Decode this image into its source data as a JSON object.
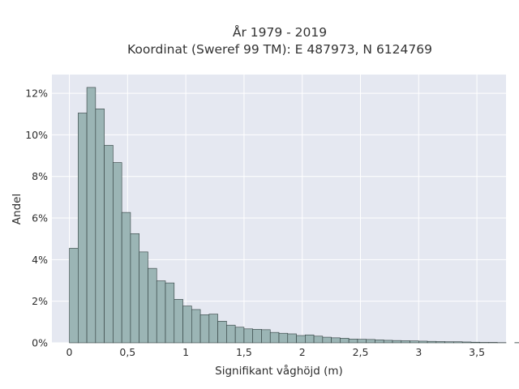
{
  "chart_data": {
    "type": "bar",
    "title_lines": [
      "År 1979 - 2019",
      "Koordinat (Sweref 99 TM): E 487973, N 6124769"
    ],
    "xlabel": "Signifikant våghöjd (m)",
    "ylabel": "Andel",
    "xlim": [
      -0.15,
      3.75
    ],
    "ylim": [
      0,
      12.9
    ],
    "x_ticks": [
      {
        "value": 0,
        "label": "0"
      },
      {
        "value": 0.5,
        "label": "0,5"
      },
      {
        "value": 1,
        "label": "1"
      },
      {
        "value": 1.5,
        "label": "1,5"
      },
      {
        "value": 2,
        "label": "2"
      },
      {
        "value": 2.5,
        "label": "2,5"
      },
      {
        "value": 3,
        "label": "3"
      },
      {
        "value": 3.5,
        "label": "3,5"
      }
    ],
    "y_ticks": [
      {
        "value": 0,
        "label": "0%"
      },
      {
        "value": 2,
        "label": "2%"
      },
      {
        "value": 4,
        "label": "4%"
      },
      {
        "value": 6,
        "label": "6%"
      },
      {
        "value": 8,
        "label": "8%"
      },
      {
        "value": 10,
        "label": "10%"
      },
      {
        "value": 12,
        "label": "12%"
      }
    ],
    "bin_width": 0.075,
    "bin_start": 0.0,
    "values": [
      4.55,
      11.05,
      12.28,
      11.25,
      9.5,
      8.67,
      6.27,
      5.25,
      4.37,
      3.58,
      2.98,
      2.88,
      2.09,
      1.77,
      1.6,
      1.35,
      1.38,
      1.04,
      0.85,
      0.75,
      0.67,
      0.65,
      0.63,
      0.5,
      0.46,
      0.43,
      0.35,
      0.38,
      0.32,
      0.27,
      0.24,
      0.22,
      0.18,
      0.17,
      0.16,
      0.14,
      0.12,
      0.11,
      0.1,
      0.09,
      0.08,
      0.07,
      0.06,
      0.05,
      0.05,
      0.04,
      0.03,
      0.02,
      0.02,
      0.01,
      0.0,
      0.01
    ],
    "grid": true,
    "colors": {
      "plot_bg": "#e5e8f1",
      "grid": "#ffffff",
      "bar_fill": "#9bb5b5",
      "bar_edge": "#2f3d3d"
    }
  }
}
